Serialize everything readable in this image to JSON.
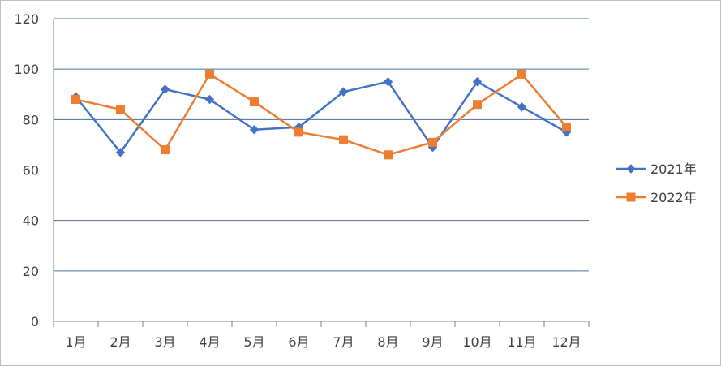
{
  "chart_data": {
    "type": "line",
    "categories": [
      "1月",
      "2月",
      "3月",
      "4月",
      "5月",
      "6月",
      "7月",
      "8月",
      "9月",
      "10月",
      "11月",
      "12月"
    ],
    "series": [
      {
        "name": "2021年",
        "values": [
          89,
          67,
          92,
          88,
          76,
          77,
          91,
          95,
          69,
          95,
          85,
          75
        ],
        "color": "#4472C4",
        "marker": "diamond"
      },
      {
        "name": "2022年",
        "values": [
          88,
          84,
          68,
          98,
          87,
          75,
          72,
          66,
          71,
          86,
          98,
          77
        ],
        "color": "#ED7D31",
        "marker": "square"
      }
    ],
    "ylim": [
      0,
      120
    ],
    "yticks": [
      0,
      20,
      40,
      60,
      80,
      100,
      120
    ],
    "grid": true,
    "legend": "right"
  }
}
